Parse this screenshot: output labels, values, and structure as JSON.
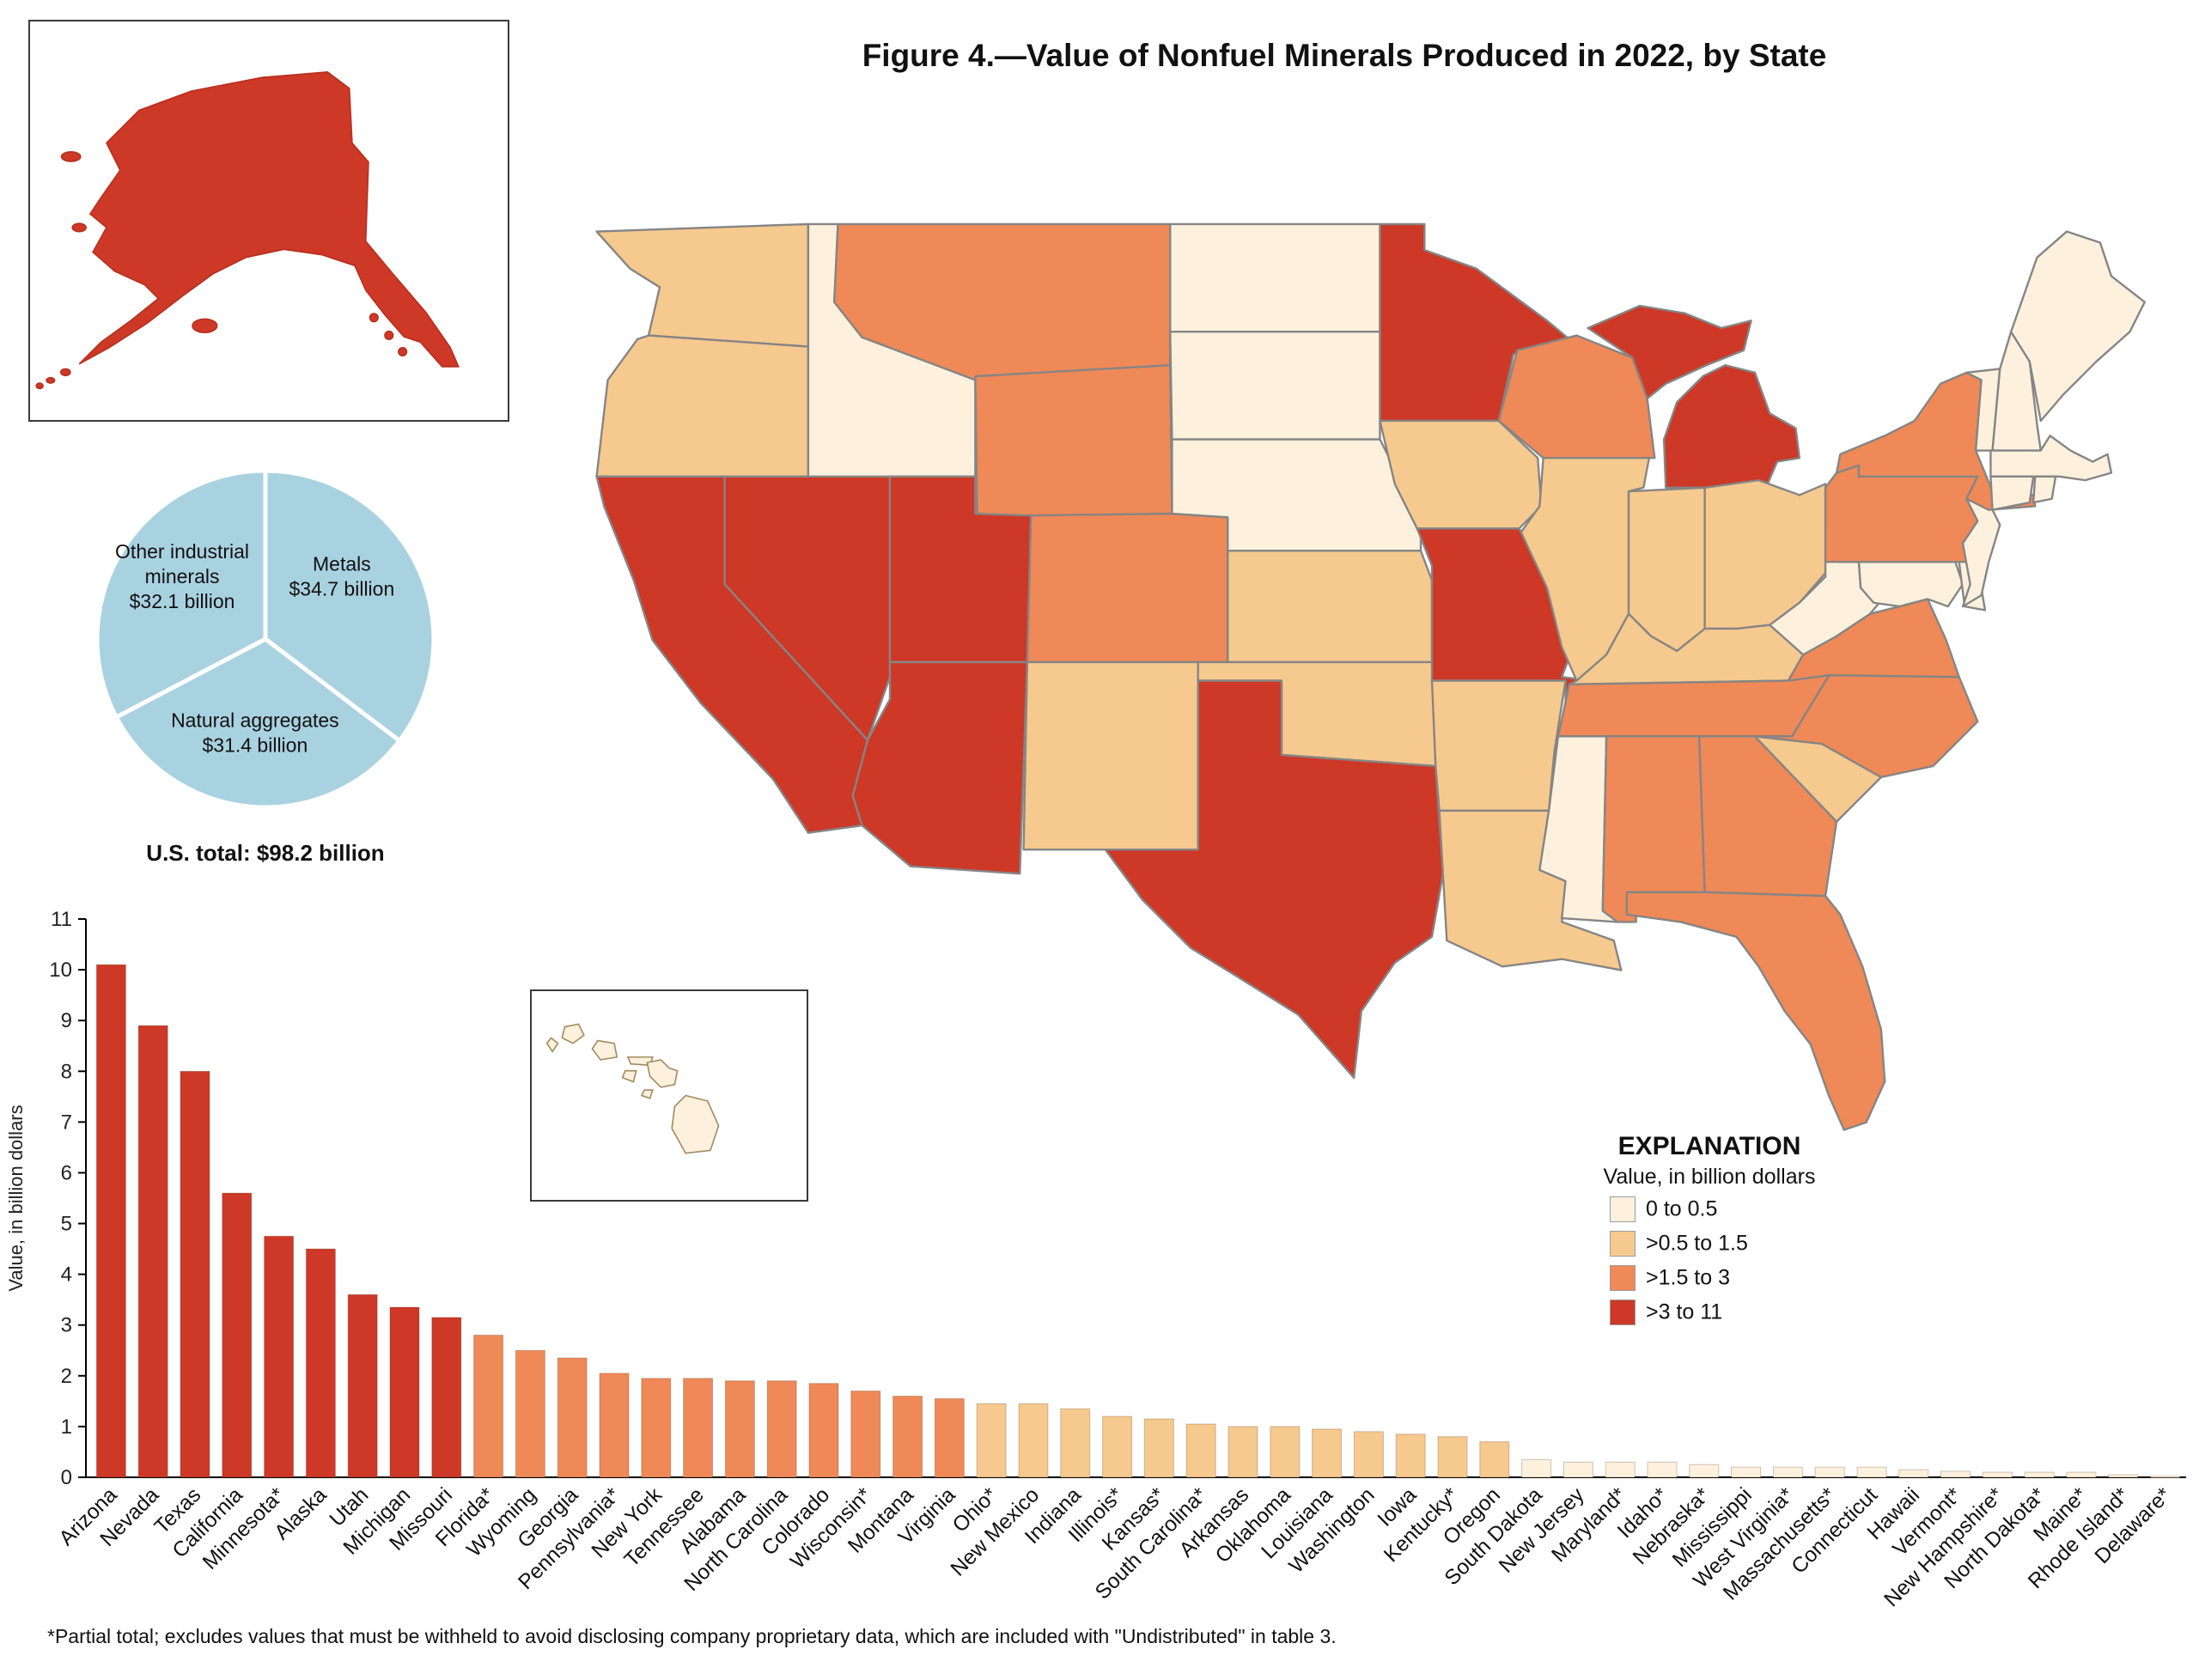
{
  "title": "Figure 4.—Value of Nonfuel Minerals Produced in 2022, by State",
  "footnote": "*Partial total; excludes values that must be withheld to avoid disclosing company proprietary data, which are included with \"Undistributed\" in table 3.",
  "legend": {
    "title": "EXPLANATION",
    "subtitle": "Value, in billion dollars",
    "breaks": [
      0.5,
      1.5,
      3
    ],
    "classes": [
      {
        "label": "0 to 0.5",
        "color": "#fdf1dd"
      },
      {
        "label": ">0.5 to 1.5",
        "color": "#f6c98e"
      },
      {
        "label": ">1.5 to 3",
        "color": "#ef8957"
      },
      {
        "label": ">3 to 11",
        "color": "#cd3827"
      }
    ]
  },
  "chart_data": [
    {
      "type": "bar",
      "title": "",
      "xlabel": "",
      "ylabel": "Value, in billion dollars",
      "ylim": [
        0,
        11
      ],
      "categories": [
        "Arizona",
        "Nevada",
        "Texas",
        "California",
        "Minnesota*",
        "Alaska",
        "Utah",
        "Michigan",
        "Missouri",
        "Florida*",
        "Wyoming",
        "Georgia",
        "Pennsylvania*",
        "New York",
        "Tennessee",
        "Alabama",
        "North Carolina",
        "Colorado",
        "Wisconsin*",
        "Montana",
        "Virginia",
        "Ohio*",
        "New Mexico",
        "Indiana",
        "Illinois*",
        "Kansas*",
        "South Carolina*",
        "Arkansas",
        "Oklahoma",
        "Louisiana",
        "Washington",
        "Iowa",
        "Kentucky*",
        "Oregon",
        "South Dakota",
        "New Jersey",
        "Maryland*",
        "Idaho*",
        "Nebraska*",
        "Mississippi",
        "West Virginia*",
        "Massachusetts*",
        "Connecticut",
        "Hawaii",
        "Vermont*",
        "New Hampshire*",
        "North Dakota*",
        "Maine*",
        "Rhode Island*",
        "Delaware*"
      ],
      "values": [
        10.1,
        8.9,
        8.0,
        5.6,
        4.75,
        4.5,
        3.6,
        3.35,
        3.15,
        2.8,
        2.5,
        2.35,
        2.05,
        1.95,
        1.95,
        1.9,
        1.9,
        1.85,
        1.7,
        1.6,
        1.55,
        1.45,
        1.45,
        1.35,
        1.2,
        1.15,
        1.05,
        1.0,
        1.0,
        0.95,
        0.9,
        0.85,
        0.8,
        0.7,
        0.35,
        0.3,
        0.3,
        0.3,
        0.25,
        0.2,
        0.2,
        0.2,
        0.2,
        0.15,
        0.12,
        0.1,
        0.1,
        0.1,
        0.05,
        0.02
      ]
    },
    {
      "type": "pie",
      "color": "#a9d2e1",
      "total_label": "U.S. total: $98.2 billion",
      "slices": [
        {
          "label": "Metals",
          "value": 34.7,
          "value_label": "$34.7 billion"
        },
        {
          "label": "Natural aggregates",
          "value": 31.4,
          "value_label": "$31.4 billion"
        },
        {
          "label": "Other industrial minerals",
          "value": 32.1,
          "value_label": "$32.1 billion"
        }
      ]
    },
    {
      "type": "choropleth",
      "state_class": {
        "WA": 1,
        "OR": 1,
        "CA": 3,
        "NV": 3,
        "ID": 0,
        "MT": 2,
        "WY": 2,
        "UT": 3,
        "CO": 2,
        "AZ": 3,
        "NM": 1,
        "ND": 0,
        "SD": 0,
        "NE": 0,
        "KS": 1,
        "OK": 1,
        "TX": 3,
        "MN": 3,
        "IA": 1,
        "MO": 3,
        "AR": 1,
        "LA": 1,
        "WI": 2,
        "IL": 1,
        "MI": 3,
        "IN": 1,
        "OH": 1,
        "KY": 1,
        "TN": 2,
        "MS": 0,
        "AL": 2,
        "GA": 2,
        "FL": 2,
        "SC": 1,
        "NC": 2,
        "VA": 2,
        "WV": 0,
        "MD": 0,
        "DE": 0,
        "PA": 2,
        "NJ": 0,
        "NY": 2,
        "VT": 0,
        "NH": 0,
        "ME": 0,
        "MA": 0,
        "CT": 0,
        "RI": 0,
        "AK": 3,
        "HI": 0
      }
    }
  ]
}
